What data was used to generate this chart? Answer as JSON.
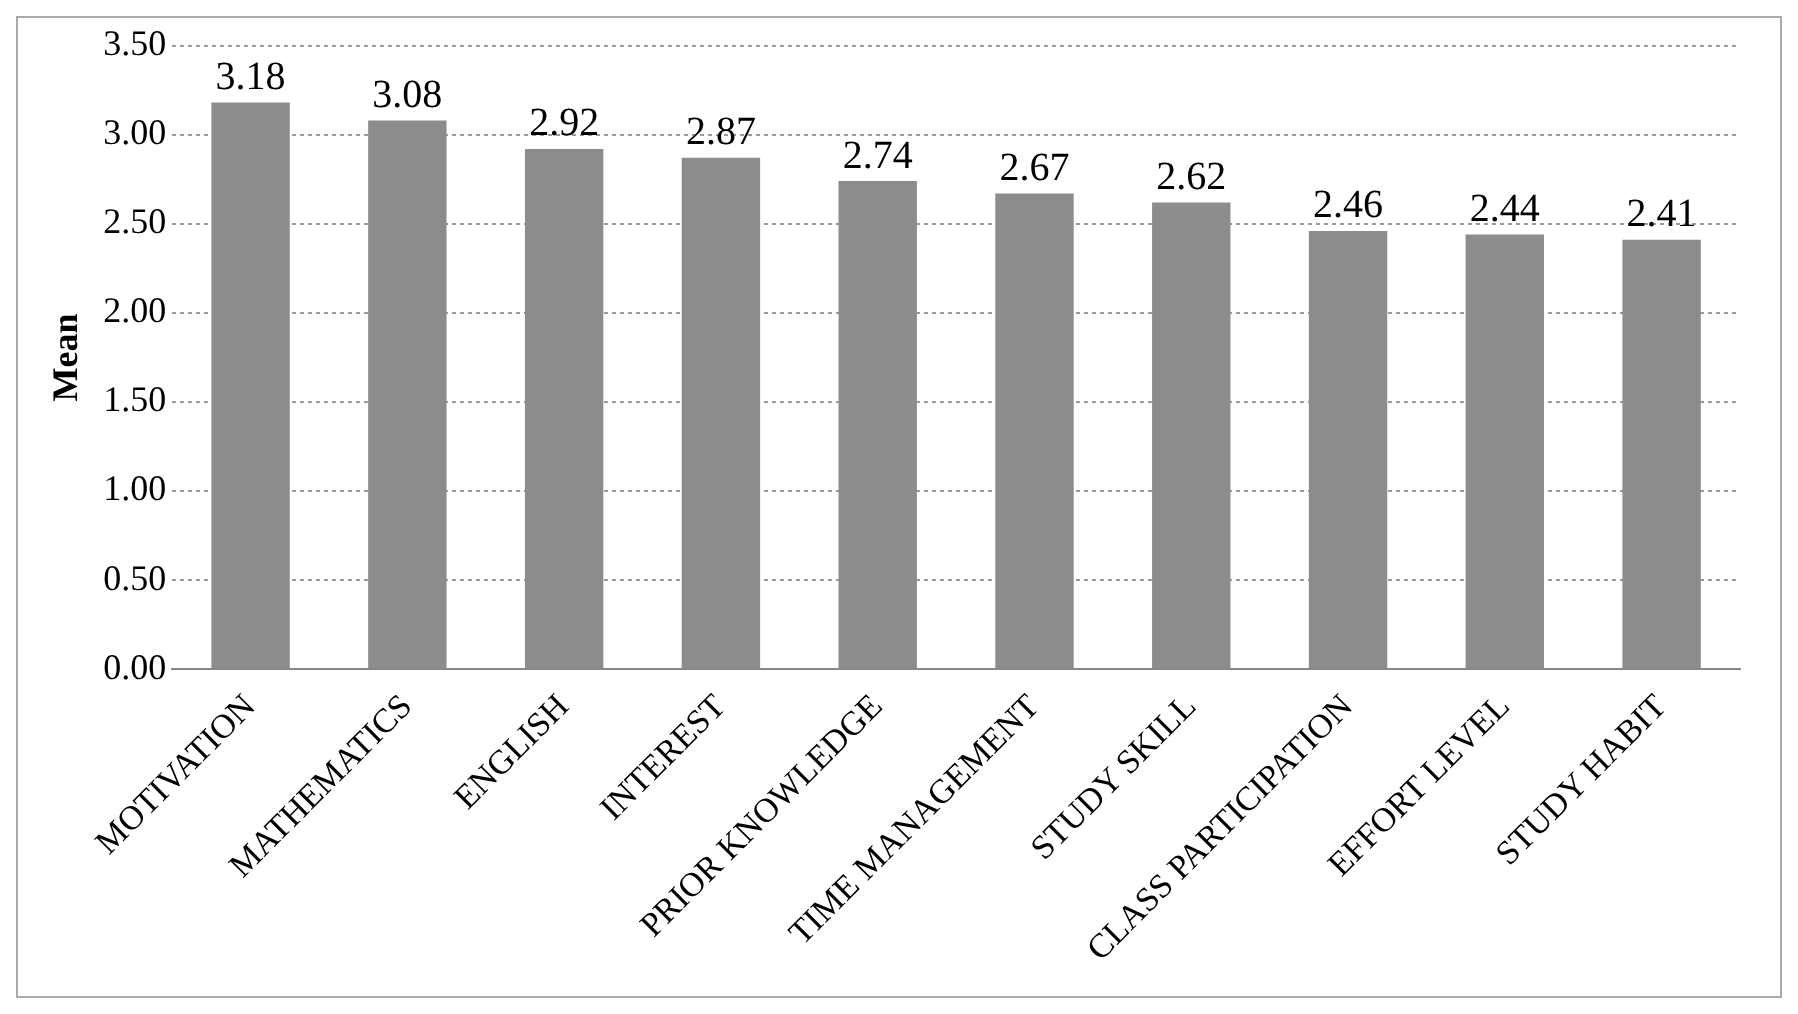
{
  "chart_data": {
    "type": "bar",
    "ylabel": "Mean",
    "categories": [
      "MOTIVATION",
      "MATHEMATICS",
      "ENGLISH",
      "INTEREST",
      "PRIOR KNOWLEDGE",
      "TIME MANAGEMENT",
      "STUDY SKILL",
      "CLASS PARTICIPATION",
      "EFFORT LEVEL",
      "STUDY HABIT"
    ],
    "values": [
      3.18,
      3.08,
      2.92,
      2.87,
      2.74,
      2.67,
      2.62,
      2.46,
      2.44,
      2.41
    ],
    "color": "#8c8c8c",
    "ylim": [
      0,
      3.5
    ],
    "yticks": [
      {
        "value": 0,
        "label": "0.00"
      },
      {
        "value": 0.5,
        "label": "0.50"
      },
      {
        "value": 1,
        "label": "1.00"
      },
      {
        "value": 1.5,
        "label": "1.50"
      },
      {
        "value": 2,
        "label": "2.00"
      },
      {
        "value": 2.5,
        "label": "2.50"
      },
      {
        "value": 3,
        "label": "3.00"
      },
      {
        "value": 3.5,
        "label": "3.50"
      }
    ],
    "grid": "y",
    "data_labels": true,
    "legend": false
  }
}
